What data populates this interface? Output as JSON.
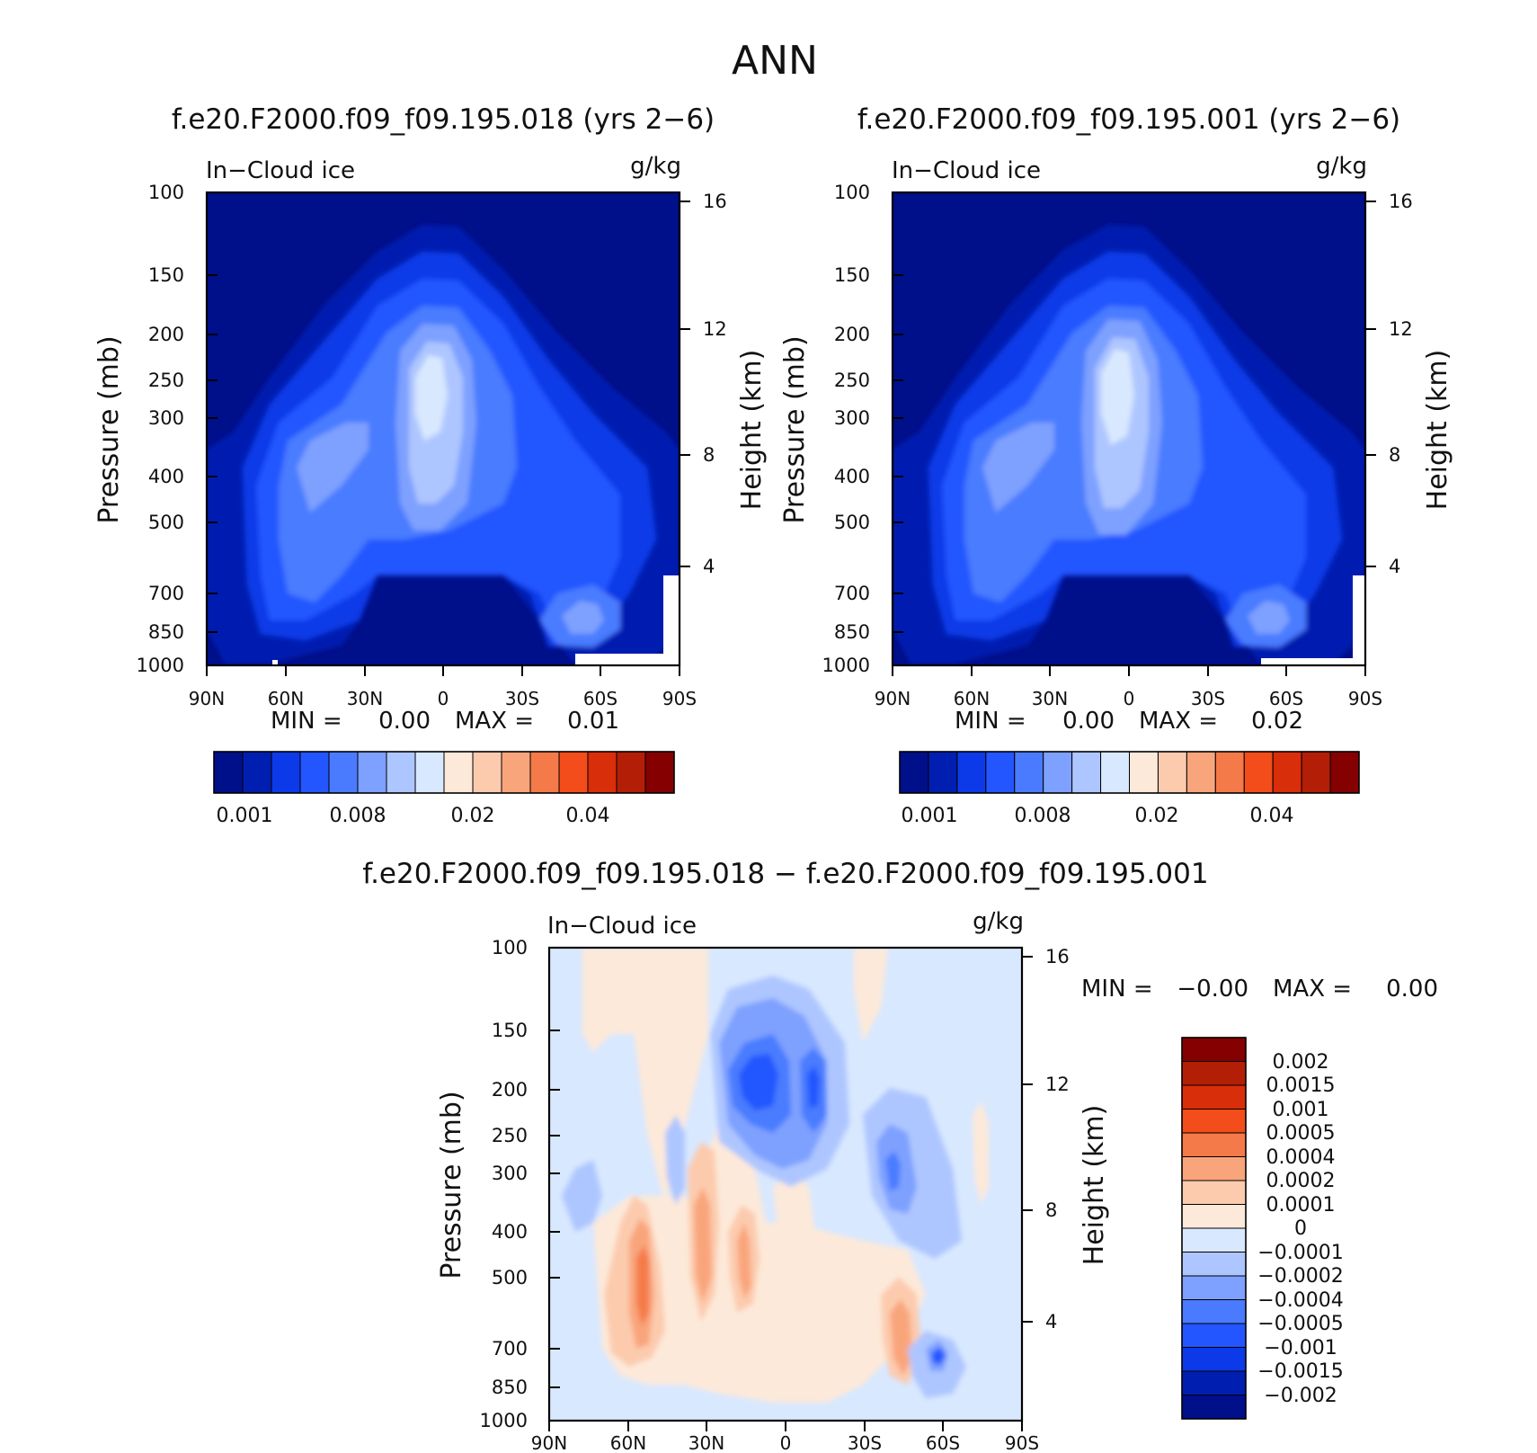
{
  "figure": {
    "title": "ANN"
  },
  "colors": {
    "abs_levels": [
      "#000f8a",
      "#001fb0",
      "#0d3ae8",
      "#2456ff",
      "#4a7bff",
      "#7ea0ff",
      "#aec6ff",
      "#d8e8ff",
      "#fde9d9",
      "#fccbae",
      "#f9a57c",
      "#f57a49",
      "#f24d1b",
      "#d92e0a",
      "#b21f06",
      "#850000"
    ],
    "diff_levels": [
      "#000f8a",
      "#001fb0",
      "#0d3ae8",
      "#2456ff",
      "#4a7bff",
      "#7ea0ff",
      "#aec6ff",
      "#d8e8ff",
      "#fde9d9",
      "#fccbae",
      "#f9a57c",
      "#f57a49",
      "#f24d1b",
      "#d92e0a",
      "#b21f06",
      "#850000"
    ]
  },
  "chart_data": [
    {
      "type": "heatmap",
      "title": "f.e20.F2000.f09_f09.195.018 (yrs 2-6)",
      "variable": "In-Cloud ice",
      "units": "g/kg",
      "xlabel": "",
      "ylabel": "Pressure (mb)",
      "ylabel_right": "Height (km)",
      "x_ticks": [
        "90N",
        "60N",
        "30N",
        "0",
        "30S",
        "60S",
        "90S"
      ],
      "y_ticks": [
        "100",
        "150",
        "200",
        "250",
        "300",
        "400",
        "500",
        "700",
        "850",
        "1000"
      ],
      "y_ticks_right": [
        "16",
        "12",
        "8",
        "4"
      ],
      "min_label": "MIN =",
      "min_value": "0.00",
      "max_label": "MAX =",
      "max_value": "0.01",
      "colorbar_labels": [
        "0.001",
        "0.008",
        "0.02",
        "0.04"
      ],
      "xlim": [
        90,
        -90
      ],
      "ylim": [
        1000,
        100
      ]
    },
    {
      "type": "heatmap",
      "title": "f.e20.F2000.f09_f09.195.001 (yrs 2-6)",
      "variable": "In-Cloud ice",
      "units": "g/kg",
      "xlabel": "",
      "ylabel": "Pressure (mb)",
      "ylabel_right": "Height (km)",
      "x_ticks": [
        "90N",
        "60N",
        "30N",
        "0",
        "30S",
        "60S",
        "90S"
      ],
      "y_ticks": [
        "100",
        "150",
        "200",
        "250",
        "300",
        "400",
        "500",
        "700",
        "850",
        "1000"
      ],
      "y_ticks_right": [
        "16",
        "12",
        "8",
        "4"
      ],
      "min_label": "MIN =",
      "min_value": "0.00",
      "max_label": "MAX =",
      "max_value": "0.02",
      "colorbar_labels": [
        "0.001",
        "0.008",
        "0.02",
        "0.04"
      ],
      "xlim": [
        90,
        -90
      ],
      "ylim": [
        1000,
        100
      ]
    },
    {
      "type": "heatmap",
      "title": "f.e20.F2000.f09_f09.195.018 - f.e20.F2000.f09_f09.195.001",
      "variable": "In-Cloud ice",
      "units": "g/kg",
      "xlabel": "",
      "ylabel": "Pressure (mb)",
      "ylabel_right": "Height (km)",
      "x_ticks": [
        "90N",
        "60N",
        "30N",
        "0",
        "30S",
        "60S",
        "90S"
      ],
      "y_ticks": [
        "100",
        "150",
        "200",
        "250",
        "300",
        "400",
        "500",
        "700",
        "850",
        "1000"
      ],
      "y_ticks_right": [
        "16",
        "12",
        "8",
        "4"
      ],
      "min_label": "MIN =",
      "min_value": "-0.00",
      "max_label": "MAX =",
      "max_value": "0.00",
      "colorbar_labels": [
        "0.002",
        "0.0015",
        "0.001",
        "0.0005",
        "0.0004",
        "0.0002",
        "0.0001",
        "0",
        "-0.0001",
        "-0.0002",
        "-0.0004",
        "-0.0005",
        "-0.001",
        "-0.0015",
        "-0.002"
      ],
      "xlim": [
        90,
        -90
      ],
      "ylim": [
        1000,
        100
      ]
    }
  ]
}
